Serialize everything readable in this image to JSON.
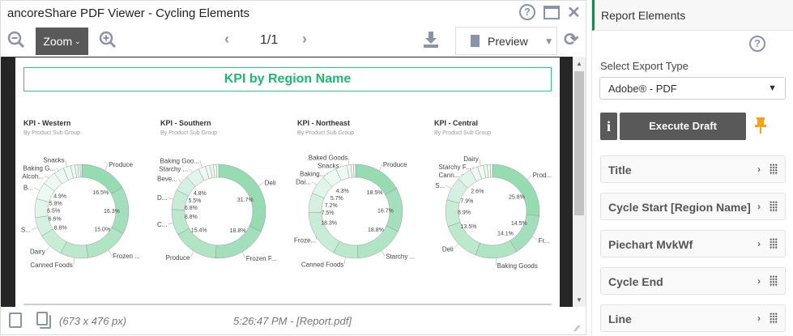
{
  "window": {
    "title": "ancoreShare PDF Viewer - Cycling Elements"
  },
  "toolbar": {
    "zoom_label": "Zoom",
    "page": "1/1",
    "preview_label": "Preview"
  },
  "document": {
    "header": "KPI by Region Name",
    "accent": "#22b573",
    "charts": [
      {
        "title": "KPI - Western",
        "subtitle": "By Product Sub Group",
        "slices": [
          {
            "label": "Produce",
            "value": 16.5,
            "pct": "16.5%"
          },
          {
            "label": "",
            "value": 16.3,
            "pct": "16.3%"
          },
          {
            "label": "Frozen ...",
            "value": 15.0,
            "pct": "15.0%"
          },
          {
            "label": "Canned Foods",
            "value": 9.5
          },
          {
            "label": "Dairy",
            "value": 8.8,
            "pct": "8.8%"
          },
          {
            "label": "S...",
            "value": 6.6,
            "pct": "6.6%"
          },
          {
            "label": "",
            "value": 6.5,
            "pct": "6.5%"
          },
          {
            "label": "B...",
            "value": 5.8,
            "pct": "5.8%"
          },
          {
            "label": "Alcoh...",
            "value": 4.9,
            "pct": "4.9%"
          },
          {
            "label": "Baking G...",
            "value": 3.5
          },
          {
            "label": "Snacks",
            "value": 2.5
          },
          {
            "label": "",
            "value": 1.5
          },
          {
            "label": "",
            "value": 1.0
          },
          {
            "label": "",
            "value": 0.8
          },
          {
            "label": "",
            "value": 0.6
          }
        ]
      },
      {
        "title": "KPI - Southern",
        "subtitle": "By Product Sub Group",
        "slices": [
          {
            "label": "Deli",
            "value": 31.7,
            "pct": "31.7%"
          },
          {
            "label": "Frozen F...",
            "value": 18.8,
            "pct": "18.8%"
          },
          {
            "label": "Produce",
            "value": 15.4,
            "pct": "15.4%"
          },
          {
            "label": "C...",
            "value": 8.8,
            "pct": "8.8%"
          },
          {
            "label": "D...",
            "value": 6.8,
            "pct": "6.8%"
          },
          {
            "label": "Beve...",
            "value": 5.5,
            "pct": "5.5%"
          },
          {
            "label": "Starchy ...",
            "value": 4.8,
            "pct": "4.8%"
          },
          {
            "label": "Baking Goo...",
            "value": 2.5
          },
          {
            "label": "",
            "value": 1.5
          },
          {
            "label": "",
            "value": 1.2
          },
          {
            "label": "",
            "value": 1.0
          },
          {
            "label": "",
            "value": 0.8
          }
        ]
      },
      {
        "title": "KPI - Northeast",
        "subtitle": "By Product Sub Group",
        "slices": [
          {
            "label": "Produce",
            "value": 18.5,
            "pct": "18.5%"
          },
          {
            "label": "",
            "value": 16.7,
            "pct": "16.7%"
          },
          {
            "label": "Starchy ...",
            "value": 18.8,
            "pct": "18.8%"
          },
          {
            "label": "Canned Foods",
            "value": 9.5
          },
          {
            "label": "Froze...",
            "value": 18.3,
            "pct": "18.3%"
          },
          {
            "label": "",
            "value": 7.5,
            "pct": "7.5%"
          },
          {
            "label": "Dai...",
            "value": 7.2,
            "pct": "7.2%"
          },
          {
            "label": "Baking...",
            "value": 5.7,
            "pct": "5.7%"
          },
          {
            "label": "Snacks",
            "value": 4.3,
            "pct": "4.3%"
          },
          {
            "label": "Baked Goods",
            "value": 1.5
          },
          {
            "label": "",
            "value": 1.0
          },
          {
            "label": "",
            "value": 0.8
          }
        ]
      },
      {
        "title": "KPI - Central",
        "subtitle": "By Product Sub Group",
        "slices": [
          {
            "label": "Prod...",
            "value": 25.8,
            "pct": "25.8%"
          },
          {
            "label": "Fr...",
            "value": 14.5,
            "pct": "14.5%"
          },
          {
            "label": "Baking Goods",
            "value": 14.1,
            "pct": "14.1%"
          },
          {
            "label": "Deli",
            "value": 13.5,
            "pct": "13.5%"
          },
          {
            "label": "",
            "value": 8.9,
            "pct": "8.9%"
          },
          {
            "label": "S...",
            "value": 7.9,
            "pct": "7.9%"
          },
          {
            "label": "Cann...",
            "value": 5.0
          },
          {
            "label": "Starchy F...",
            "value": 2.6,
            "pct": "2.6%"
          },
          {
            "label": "Dairy",
            "value": 2.0
          },
          {
            "label": "",
            "value": 1.2
          },
          {
            "label": "",
            "value": 1.0
          },
          {
            "label": "",
            "value": 0.8
          }
        ]
      }
    ]
  },
  "footer": {
    "dimensions": "(673 x 476 px)",
    "status": "5:26:47 PM - [Report.pdf]"
  },
  "panel": {
    "title": "Report Elements",
    "export_label": "Select Export Type",
    "export_value": "Adobe® - PDF",
    "execute_label": "Execute Draft",
    "pin_color": "#f7a21b",
    "items": [
      {
        "label": "Title"
      },
      {
        "label": "Cycle Start [Region Name]"
      },
      {
        "label": "Piechart MvkWf"
      },
      {
        "label": "Cycle End"
      },
      {
        "label": "Line"
      }
    ]
  }
}
